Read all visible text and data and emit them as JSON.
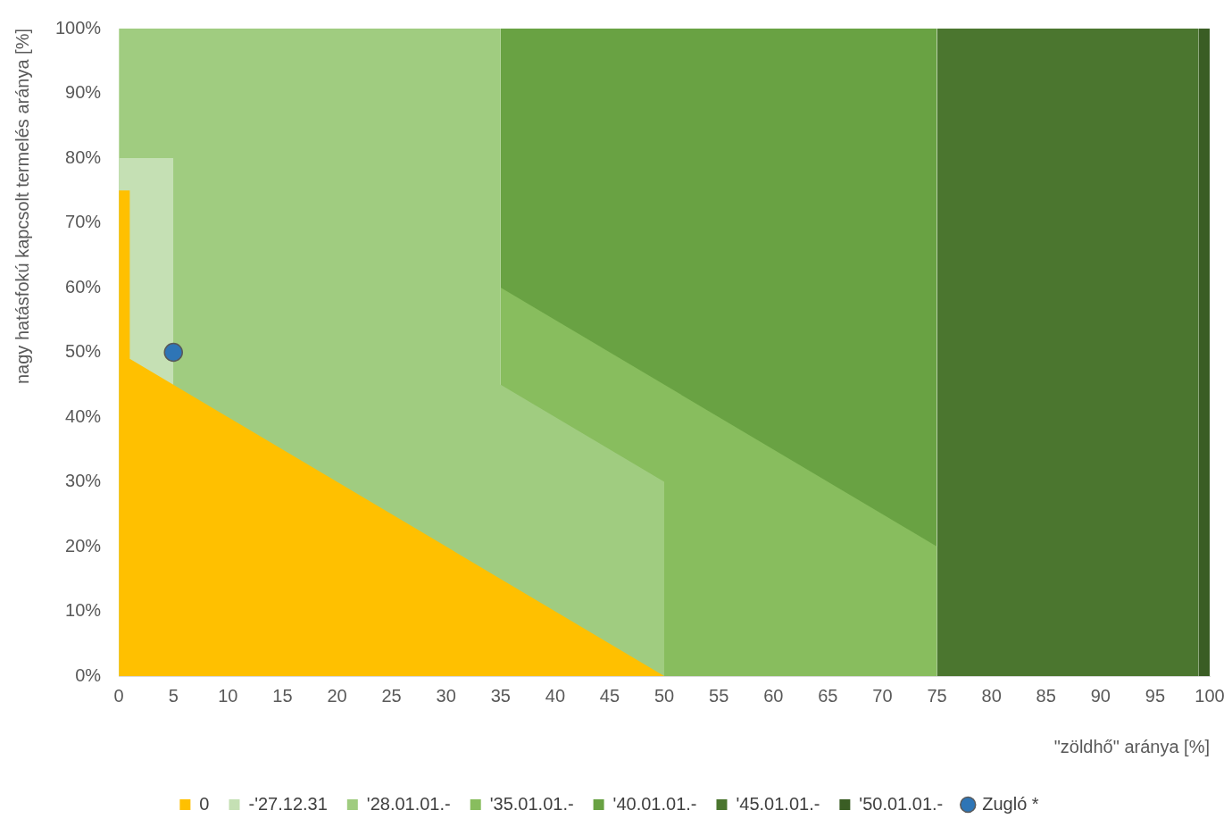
{
  "chart_data": {
    "type": "area",
    "xlabel": "\"zöldhő\" aránya [%]",
    "ylabel": "nagy hatásfokú kapcsolt termelés aránya [%]",
    "xlim": [
      0,
      100
    ],
    "xticks": [
      0,
      5,
      10,
      15,
      20,
      25,
      30,
      35,
      40,
      45,
      50,
      55,
      60,
      65,
      70,
      75,
      80,
      85,
      90,
      95,
      100
    ],
    "ylim": [
      0,
      100
    ],
    "yticks": [
      {
        "value": 0,
        "label": "0%"
      },
      {
        "value": 10,
        "label": "10%"
      },
      {
        "value": 20,
        "label": "20%"
      },
      {
        "value": 30,
        "label": "30%"
      },
      {
        "value": 40,
        "label": "40%"
      },
      {
        "value": 50,
        "label": "50%"
      },
      {
        "value": 60,
        "label": "60%"
      },
      {
        "value": 70,
        "label": "70%"
      },
      {
        "value": 80,
        "label": "80%"
      },
      {
        "value": 90,
        "label": "90%"
      },
      {
        "value": 100,
        "label": "100%"
      }
    ],
    "grid": false,
    "legend": "bottom",
    "series": [
      {
        "name": "0",
        "color": "#ffc000",
        "x": [
          0,
          1,
          1,
          50
        ],
        "values": [
          75,
          75,
          49,
          0
        ]
      },
      {
        "name": "-'27.12.31",
        "color": "#c5e0b4",
        "x": [
          0,
          5,
          5
        ],
        "values": [
          80,
          80,
          0
        ]
      },
      {
        "name": "'28.01.01.-",
        "color": "#a0cc80",
        "x": [
          0,
          35,
          35,
          50,
          50
        ],
        "values": [
          100,
          100,
          45,
          30,
          0
        ]
      },
      {
        "name": "'35.01.01.-",
        "color": "#88bd5e",
        "x": [
          35,
          35,
          75,
          75
        ],
        "values": [
          0,
          60,
          20,
          0
        ]
      },
      {
        "name": "'40.01.01.-",
        "color": "#69a243",
        "x": [
          35,
          35,
          75,
          75
        ],
        "values": [
          0,
          100,
          100,
          0
        ]
      },
      {
        "name": "'45.01.01.-",
        "color": "#4b762f",
        "x": [
          75,
          75,
          99,
          99
        ],
        "values": [
          0,
          100,
          100,
          0
        ]
      },
      {
        "name": "'50.01.01.-",
        "color": "#3a5d24",
        "x": [
          99,
          99,
          100,
          100
        ],
        "values": [
          0,
          100,
          100,
          0
        ]
      },
      {
        "name": "Zugló *",
        "type": "scatter",
        "color": "#2e75b6",
        "x": [
          5
        ],
        "values": [
          50
        ],
        "marker": "circle"
      }
    ]
  }
}
